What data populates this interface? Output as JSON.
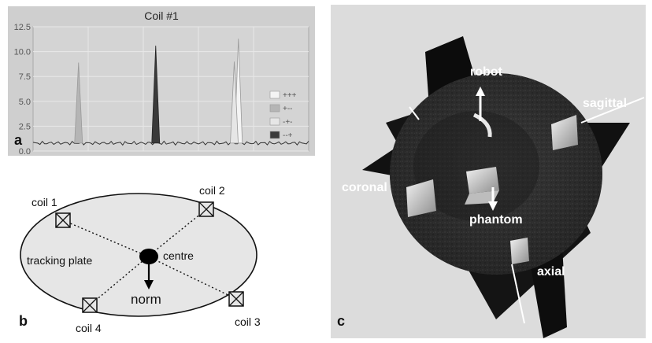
{
  "panel_a": {
    "letter": "a",
    "chart_data": {
      "type": "line",
      "title": "Coil #1",
      "ylim": [
        0,
        12.5
      ],
      "yticks": [
        0.0,
        2.5,
        5.0,
        7.5,
        10.0,
        12.5
      ],
      "ytick_labels": [
        "0.0",
        "2.5",
        "5.0",
        "7.5",
        "10.0",
        "12.5"
      ],
      "grid": true,
      "legend_position": "right",
      "series": [
        {
          "name": "+++",
          "color": "#f4f4f4",
          "peaks": [
            {
              "x": 0.745,
              "y": 11.3
            }
          ]
        },
        {
          "name": "+--",
          "color": "#b5b5b5",
          "peaks": [
            {
              "x": 0.165,
              "y": 8.9
            }
          ]
        },
        {
          "name": "-+-",
          "color": "#e6e6e6",
          "peaks": [
            {
              "x": 0.73,
              "y": 9.0
            }
          ]
        },
        {
          "name": "--+",
          "color": "#3a3a3a",
          "peaks": [
            {
              "x": 0.445,
              "y": 10.6
            }
          ]
        }
      ],
      "baseline": 0.8
    }
  },
  "panel_b": {
    "letter": "b",
    "labels": {
      "coil1": "coil 1",
      "coil2": "coil 2",
      "coil3": "coil 3",
      "coil4": "coil 4",
      "tracking": "tracking plate",
      "centre": "centre",
      "norm": "norm"
    }
  },
  "panel_c": {
    "letter": "c",
    "labels": {
      "robot": "robot",
      "sagittal": "sagittal",
      "coronal": "coronal",
      "phantom": "phantom",
      "axial": "axial"
    }
  }
}
